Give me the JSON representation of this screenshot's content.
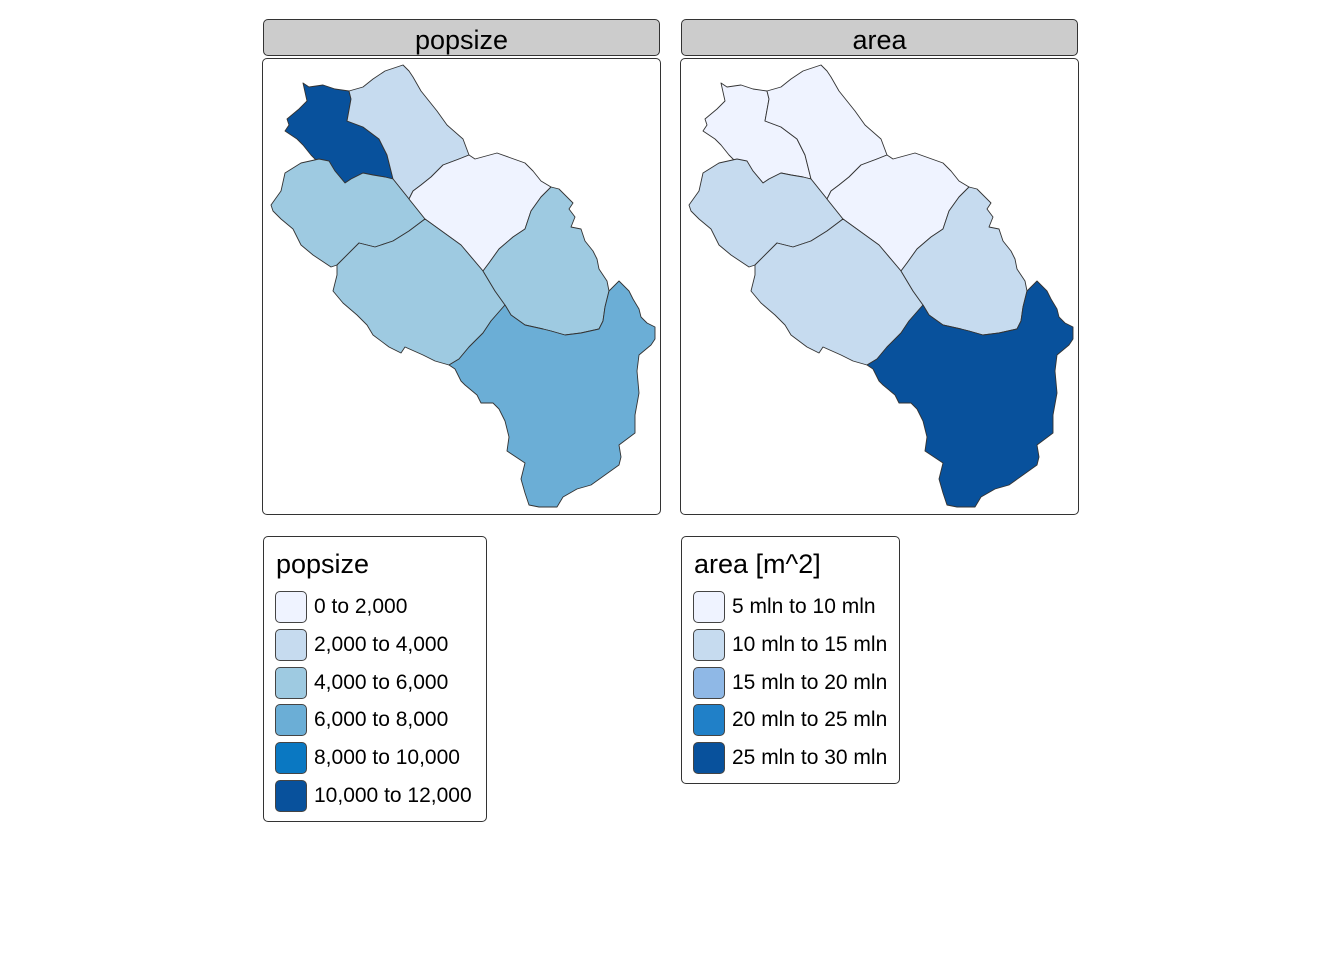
{
  "panels": [
    {
      "title": "popsize",
      "region_fills": [
        "#08519c",
        "#c6dbef",
        "#9ecae1",
        "#eff3ff",
        "#9ecae1",
        "#9ecae1",
        "#6baed6"
      ]
    },
    {
      "title": "area",
      "region_fills": [
        "#eff3ff",
        "#eff3ff",
        "#c6dbef",
        "#eff3ff",
        "#c6dbef",
        "#c6dbef",
        "#08519c"
      ]
    }
  ],
  "legends": [
    {
      "title": "popsize",
      "items": [
        {
          "label": "0 to 2,000",
          "color": "#eff3ff"
        },
        {
          "label": "2,000 to 4,000",
          "color": "#c6dbef"
        },
        {
          "label": "4,000 to 6,000",
          "color": "#9ecae1"
        },
        {
          "label": "6,000 to 8,000",
          "color": "#6baed6"
        },
        {
          "label": "8,000 to 10,000",
          "color": "#0a78c2"
        },
        {
          "label": "10,000 to 12,000",
          "color": "#08519c"
        }
      ]
    },
    {
      "title": "area [m^2]",
      "items": [
        {
          "label": "5 mln to 10 mln",
          "color": "#eff3ff"
        },
        {
          "label": "10 mln to 15 mln",
          "color": "#c6dbef"
        },
        {
          "label": "15 mln to 20 mln",
          "color": "#8fb8e6"
        },
        {
          "label": "20 mln to 25 mln",
          "color": "#2080c8"
        },
        {
          "label": "25 mln to 30 mln",
          "color": "#08519c"
        }
      ]
    }
  ]
}
